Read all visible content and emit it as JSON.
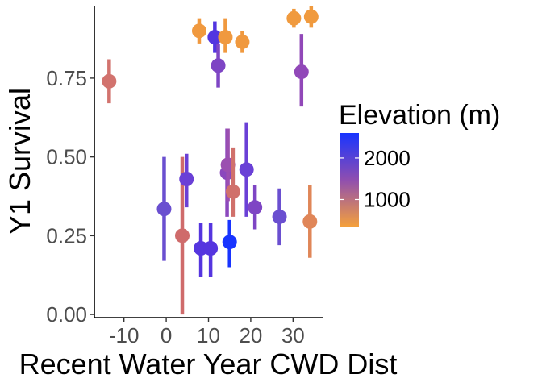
{
  "chart_data": {
    "type": "scatter",
    "xlabel": "Recent Water Year CWD Dist",
    "ylabel": "Y1 Survival",
    "xlim": [
      -17,
      37
    ],
    "ylim": [
      -0.01,
      0.98
    ],
    "x_ticks": [
      -10,
      0,
      10,
      20,
      30
    ],
    "x_tick_labels": [
      "-10",
      "0",
      "10",
      "20",
      "30"
    ],
    "y_ticks": [
      0.0,
      0.25,
      0.5,
      0.75
    ],
    "y_tick_labels": [
      "0.00",
      "0.25",
      "0.50",
      "0.75"
    ],
    "grid": false,
    "error_bars": true,
    "color_legend": {
      "title": "Elevation (m)",
      "placement": "right",
      "breaks": [
        2000,
        1000
      ],
      "break_labels": [
        "2000",
        "1000"
      ],
      "domain": [
        350,
        2600
      ],
      "low_color": "#f4a03c",
      "mid_color": "#8f4eb0",
      "high_color": "#1834ff"
    },
    "points": [
      {
        "x": -13.5,
        "y": 0.74,
        "ylo": 0.67,
        "yhi": 0.81,
        "elevation": 1150,
        "color": "#d2736e"
      },
      {
        "x": -0.5,
        "y": 0.335,
        "ylo": 0.17,
        "yhi": 0.5,
        "elevation": 2050,
        "color": "#6a4fd0"
      },
      {
        "x": 3.8,
        "y": 0.25,
        "ylo": 0.0,
        "yhi": 0.5,
        "elevation": 1150,
        "color": "#cf6b6b"
      },
      {
        "x": 4.8,
        "y": 0.43,
        "ylo": 0.34,
        "yhi": 0.51,
        "elevation": 2150,
        "color": "#6a40d6"
      },
      {
        "x": 7.8,
        "y": 0.9,
        "ylo": 0.86,
        "yhi": 0.94,
        "elevation": 500,
        "color": "#f0993f"
      },
      {
        "x": 8.2,
        "y": 0.21,
        "ylo": 0.12,
        "yhi": 0.29,
        "elevation": 2250,
        "color": "#5535df"
      },
      {
        "x": 10.5,
        "y": 0.21,
        "ylo": 0.12,
        "yhi": 0.29,
        "elevation": 2250,
        "color": "#5535df"
      },
      {
        "x": 11.5,
        "y": 0.88,
        "ylo": 0.83,
        "yhi": 0.93,
        "elevation": 2300,
        "color": "#5235e0"
      },
      {
        "x": 12.3,
        "y": 0.79,
        "ylo": 0.72,
        "yhi": 0.86,
        "elevation": 1900,
        "color": "#7e45c4"
      },
      {
        "x": 14.0,
        "y": 0.88,
        "ylo": 0.83,
        "yhi": 0.94,
        "elevation": 500,
        "color": "#f0993f"
      },
      {
        "x": 14.4,
        "y": 0.45,
        "ylo": 0.31,
        "yhi": 0.59,
        "elevation": 1800,
        "color": "#8b48bd"
      },
      {
        "x": 14.6,
        "y": 0.475,
        "ylo": 0.36,
        "yhi": 0.59,
        "elevation": 1600,
        "color": "#9b4fb0"
      },
      {
        "x": 15.0,
        "y": 0.23,
        "ylo": 0.15,
        "yhi": 0.3,
        "elevation": 2550,
        "color": "#1834ff"
      },
      {
        "x": 15.8,
        "y": 0.39,
        "ylo": 0.31,
        "yhi": 0.53,
        "elevation": 1150,
        "color": "#d0706b"
      },
      {
        "x": 18.0,
        "y": 0.865,
        "ylo": 0.83,
        "yhi": 0.9,
        "elevation": 500,
        "color": "#f0993f"
      },
      {
        "x": 19.0,
        "y": 0.46,
        "ylo": 0.31,
        "yhi": 0.61,
        "elevation": 2150,
        "color": "#6a40d6"
      },
      {
        "x": 21.0,
        "y": 0.34,
        "ylo": 0.27,
        "yhi": 0.41,
        "elevation": 1900,
        "color": "#7e45c4"
      },
      {
        "x": 26.8,
        "y": 0.31,
        "ylo": 0.22,
        "yhi": 0.4,
        "elevation": 2050,
        "color": "#6a4fd0"
      },
      {
        "x": 30.2,
        "y": 0.94,
        "ylo": 0.91,
        "yhi": 0.97,
        "elevation": 450,
        "color": "#f09a3e"
      },
      {
        "x": 32.0,
        "y": 0.77,
        "ylo": 0.66,
        "yhi": 0.89,
        "elevation": 1700,
        "color": "#9148b8"
      },
      {
        "x": 34.0,
        "y": 0.295,
        "ylo": 0.18,
        "yhi": 0.41,
        "elevation": 950,
        "color": "#e08658"
      },
      {
        "x": 34.3,
        "y": 0.945,
        "ylo": 0.91,
        "yhi": 0.98,
        "elevation": 450,
        "color": "#f09a3e"
      }
    ]
  }
}
